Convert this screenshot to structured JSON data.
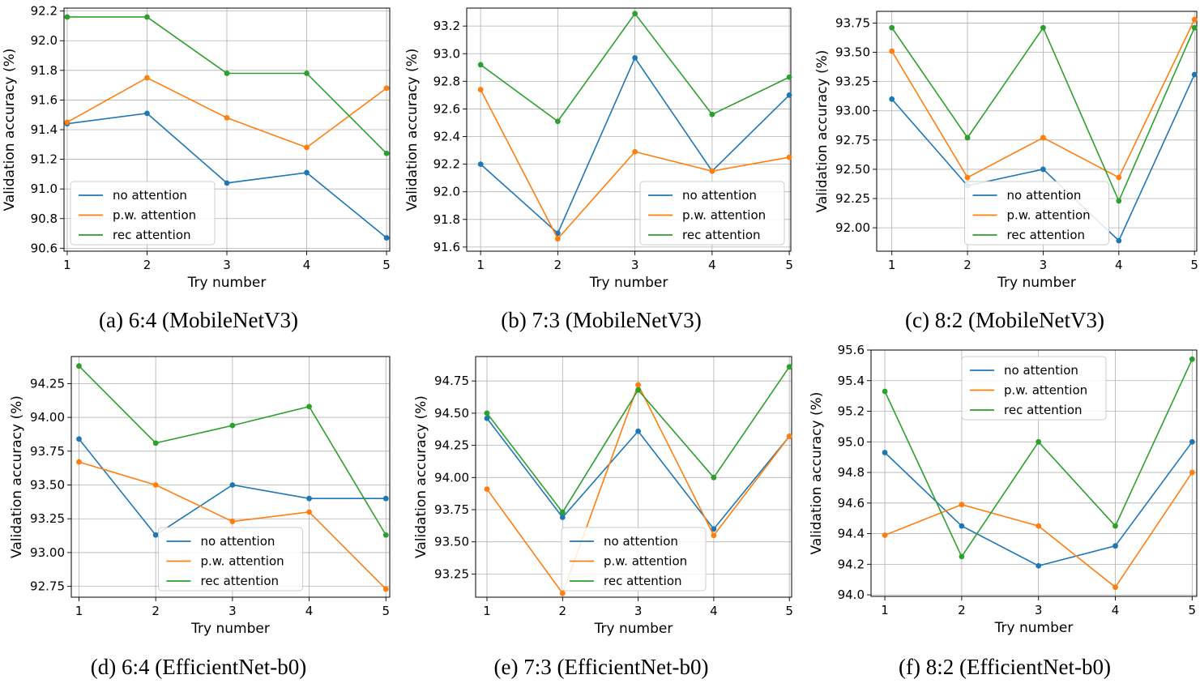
{
  "legend_labels": [
    "no attention",
    "p.w. attention",
    "rec attention"
  ],
  "colors": {
    "no attention": "#1f77b4",
    "p.w. attention": "#ff7f0e",
    "rec attention": "#2ca02c",
    "grid": "#b0b0b0",
    "legend_border": "#cccccc"
  },
  "chart_data": [
    {
      "type": "line",
      "caption": "(a) 6:4 (MobileNetV3)",
      "xlabel": "Try number",
      "ylabel": "Validation accuracy (%)",
      "x": [
        1,
        2,
        3,
        4,
        5
      ],
      "xlim": [
        0.96,
        5.04
      ],
      "ylim": [
        90.58,
        92.22
      ],
      "yticks": [
        "90.6",
        "90.8",
        "91.0",
        "91.2",
        "91.4",
        "91.6",
        "91.8",
        "92.0",
        "92.2"
      ],
      "legend_position": "bottom-left",
      "series": [
        {
          "name": "no attention",
          "values": [
            91.44,
            91.51,
            91.04,
            91.11,
            90.67
          ]
        },
        {
          "name": "p.w. attention",
          "values": [
            91.45,
            91.75,
            91.48,
            91.28,
            91.68
          ]
        },
        {
          "name": "rec attention",
          "values": [
            92.16,
            92.16,
            91.78,
            91.78,
            91.24
          ]
        }
      ]
    },
    {
      "type": "line",
      "caption": "(b) 7:3 (MobileNetV3)",
      "xlabel": "Try number",
      "ylabel": "Validation accuracy (%)",
      "x": [
        1,
        2,
        3,
        4,
        5
      ],
      "xlim": [
        0.82,
        5.02
      ],
      "ylim": [
        91.57,
        93.33
      ],
      "yticks": [
        "91.6",
        "91.8",
        "92.0",
        "92.2",
        "92.4",
        "92.6",
        "92.8",
        "93.0",
        "93.2"
      ],
      "legend_position": "bottom-right",
      "series": [
        {
          "name": "no attention",
          "values": [
            92.2,
            91.7,
            92.97,
            92.15,
            92.7
          ]
        },
        {
          "name": "p.w. attention",
          "values": [
            92.74,
            91.66,
            92.29,
            92.15,
            92.25
          ]
        },
        {
          "name": "rec attention",
          "values": [
            92.92,
            92.51,
            93.29,
            92.56,
            92.83
          ]
        }
      ]
    },
    {
      "type": "line",
      "caption": "(c) 8:2 (MobileNetV3)",
      "xlabel": "Try number",
      "ylabel": "Validation accuracy (%)",
      "x": [
        1,
        2,
        3,
        4,
        5
      ],
      "xlim": [
        0.8,
        5.03
      ],
      "ylim": [
        91.8,
        93.85
      ],
      "yticks": [
        "92.00",
        "92.25",
        "92.50",
        "92.75",
        "93.00",
        "93.25",
        "93.50",
        "93.75"
      ],
      "legend_position": "bottom-center",
      "series": [
        {
          "name": "no attention",
          "values": [
            93.1,
            92.36,
            92.5,
            91.89,
            93.31
          ]
        },
        {
          "name": "p.w. attention",
          "values": [
            93.51,
            92.43,
            92.77,
            92.43,
            93.78
          ]
        },
        {
          "name": "rec attention",
          "values": [
            93.71,
            92.77,
            93.71,
            92.23,
            93.71
          ]
        }
      ]
    },
    {
      "type": "line",
      "caption": "(d) 6:4 (EfficientNet-b0)",
      "xlabel": "Try number",
      "ylabel": "Validation accuracy (%)",
      "x": [
        1,
        2,
        3,
        4,
        5
      ],
      "xlim": [
        0.9,
        5.05
      ],
      "ylim": [
        92.67,
        94.45
      ],
      "yticks": [
        "92.75",
        "93.00",
        "93.25",
        "93.50",
        "93.75",
        "94.00",
        "94.25"
      ],
      "legend_position": "bottom-center",
      "series": [
        {
          "name": "no attention",
          "values": [
            93.84,
            93.13,
            93.5,
            93.4,
            93.4
          ]
        },
        {
          "name": "p.w. attention",
          "values": [
            93.67,
            93.5,
            93.23,
            93.3,
            92.73
          ]
        },
        {
          "name": "rec attention",
          "values": [
            94.38,
            93.81,
            93.94,
            94.08,
            93.13
          ]
        }
      ]
    },
    {
      "type": "line",
      "caption": "(e) 7:3 (EfficientNet-b0)",
      "xlabel": "Try number",
      "ylabel": "Validation accuracy (%)",
      "x": [
        1,
        2,
        3,
        4,
        5
      ],
      "xlim": [
        0.85,
        5.03
      ],
      "ylim": [
        93.07,
        94.94
      ],
      "yticks": [
        "93.25",
        "93.50",
        "93.75",
        "94.00",
        "94.25",
        "94.50",
        "94.75"
      ],
      "legend_position": "bottom-center",
      "series": [
        {
          "name": "no attention",
          "values": [
            94.46,
            93.69,
            94.36,
            93.6,
            94.32
          ]
        },
        {
          "name": "p.w. attention",
          "values": [
            93.91,
            93.1,
            94.72,
            93.55,
            94.32
          ]
        },
        {
          "name": "rec attention",
          "values": [
            94.5,
            93.73,
            94.68,
            94.0,
            94.86
          ]
        }
      ]
    },
    {
      "type": "line",
      "caption": "(f) 8:2 (EfficientNet-b0)",
      "xlabel": "Try number",
      "ylabel": "Validation accuracy (%)",
      "x": [
        1,
        2,
        3,
        4,
        5
      ],
      "xlim": [
        0.82,
        5.06
      ],
      "ylim": [
        93.99,
        95.6
      ],
      "yticks": [
        "94.0",
        "94.2",
        "94.4",
        "94.6",
        "94.8",
        "95.0",
        "95.2",
        "95.4",
        "95.6"
      ],
      "legend_position": "top-center",
      "series": [
        {
          "name": "no attention",
          "values": [
            94.93,
            94.45,
            94.19,
            94.32,
            95.0
          ]
        },
        {
          "name": "p.w. attention",
          "values": [
            94.39,
            94.59,
            94.45,
            94.05,
            94.8
          ]
        },
        {
          "name": "rec attention",
          "values": [
            95.33,
            94.25,
            95.0,
            94.45,
            95.54
          ]
        }
      ]
    }
  ]
}
